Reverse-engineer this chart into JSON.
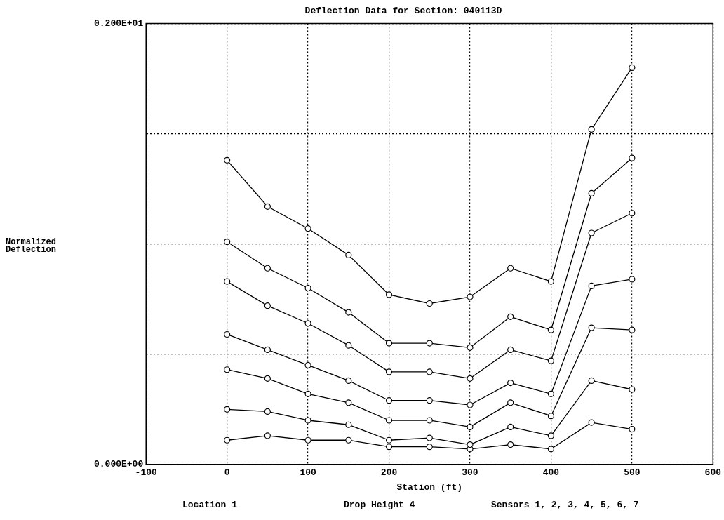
{
  "chart_data": {
    "type": "line",
    "title": "Deflection Data for Section: 040113D",
    "xlabel": "Station (ft)",
    "ylabel": "Normalized\nDeflection",
    "annotations": [
      "Location 1",
      "Drop Height 4",
      "Sensors 1, 2, 3, 4, 5, 6, 7"
    ],
    "x": [
      0,
      50,
      100,
      150,
      200,
      250,
      300,
      350,
      400,
      450,
      500
    ],
    "series": [
      {
        "color": "#000000",
        "values": [
          1.38,
          1.17,
          1.07,
          0.95,
          0.77,
          0.73,
          0.76,
          0.89,
          0.83,
          1.52,
          1.8
        ]
      },
      {
        "color": "#000000",
        "values": [
          1.01,
          0.89,
          0.8,
          0.69,
          0.55,
          0.55,
          0.53,
          0.67,
          0.61,
          1.23,
          1.39
        ]
      },
      {
        "color": "#000000",
        "values": [
          0.83,
          0.72,
          0.64,
          0.54,
          0.42,
          0.42,
          0.39,
          0.52,
          0.47,
          1.05,
          1.14
        ]
      },
      {
        "color": "#000000",
        "values": [
          0.59,
          0.52,
          0.45,
          0.38,
          0.29,
          0.29,
          0.27,
          0.37,
          0.32,
          0.81,
          0.84
        ]
      },
      {
        "color": "#000000",
        "values": [
          0.43,
          0.39,
          0.32,
          0.28,
          0.2,
          0.2,
          0.17,
          0.28,
          0.22,
          0.62,
          0.61
        ]
      },
      {
        "color": "#000000",
        "values": [
          0.25,
          0.24,
          0.2,
          0.18,
          0.11,
          0.12,
          0.09,
          0.17,
          0.13,
          0.38,
          0.34
        ]
      },
      {
        "color": "#000000",
        "values": [
          0.11,
          0.13,
          0.11,
          0.11,
          0.08,
          0.08,
          0.07,
          0.09,
          0.07,
          0.19,
          0.16
        ]
      }
    ],
    "xlim": [
      -100,
      600
    ],
    "xticks": [
      -100,
      0,
      100,
      200,
      300,
      400,
      500,
      600
    ],
    "ylim": [
      0,
      2
    ],
    "yticks": [
      {
        "value": 0,
        "label": "0.000E+00"
      },
      {
        "value": 0.5,
        "label": null
      },
      {
        "value": 1,
        "label": null
      },
      {
        "value": 1.5,
        "label": null
      },
      {
        "value": 2,
        "label": "0.200E+01"
      }
    ],
    "grid": true,
    "legend": false,
    "marker": "circle",
    "line_style": "solid"
  }
}
